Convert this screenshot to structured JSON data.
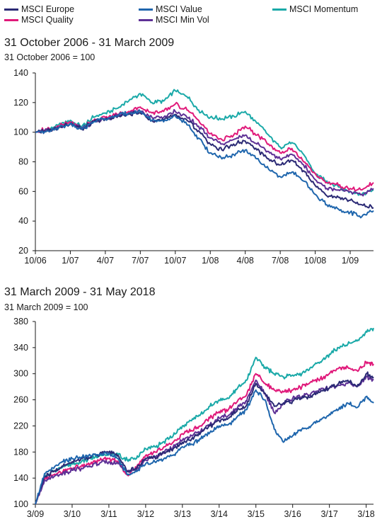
{
  "legend": [
    {
      "name": "MSCI Europe",
      "color": "#2b2a75"
    },
    {
      "name": "MSCI Quality",
      "color": "#e0197a"
    },
    {
      "name": "MSCI Value",
      "color": "#1f66ad"
    },
    {
      "name": "MSCI Min Vol",
      "color": "#5e3196"
    },
    {
      "name": "MSCI Momentum",
      "color": "#1aa9a8"
    }
  ],
  "chart_data": [
    {
      "type": "line",
      "title": "31 October 2006 - 31 March 2009",
      "subtitle": "31 October 2006 = 100",
      "ylim": [
        20,
        140
      ],
      "yticks": [
        20,
        40,
        60,
        80,
        100,
        120,
        140
      ],
      "xlim": [
        0,
        29
      ],
      "xticks": [
        {
          "x": 0,
          "label": "10/06"
        },
        {
          "x": 3,
          "label": "1/07"
        },
        {
          "x": 6,
          "label": "4/07"
        },
        {
          "x": 9,
          "label": "7/07"
        },
        {
          "x": 12,
          "label": "10/07"
        },
        {
          "x": 15,
          "label": "1/08"
        },
        {
          "x": 18,
          "label": "4/08"
        },
        {
          "x": 21,
          "label": "7/08"
        },
        {
          "x": 24,
          "label": "10/08"
        },
        {
          "x": 27,
          "label": "1/09"
        }
      ],
      "x": [
        0,
        1,
        2,
        3,
        4,
        5,
        6,
        7,
        8,
        9,
        10,
        11,
        12,
        13,
        14,
        15,
        16,
        17,
        18,
        19,
        20,
        21,
        22,
        23,
        24,
        25,
        26,
        27,
        28,
        29
      ],
      "series": [
        {
          "name": "MSCI Momentum",
          "color": "#1aa9a8",
          "values": [
            100,
            102,
            105,
            108,
            104,
            110,
            113,
            116,
            121,
            126,
            120,
            121,
            128,
            124,
            115,
            110,
            109,
            111,
            114,
            106,
            98,
            90,
            93,
            85,
            72,
            67,
            63,
            60,
            58,
            61
          ]
        },
        {
          "name": "MSCI Quality",
          "color": "#e0197a",
          "values": [
            100,
            102,
            104,
            107,
            103,
            108,
            110,
            112,
            114,
            117,
            113,
            114,
            119,
            115,
            108,
            99,
            95,
            98,
            104,
            98,
            92,
            86,
            89,
            80,
            72,
            66,
            64,
            62,
            61,
            66
          ]
        },
        {
          "name": "MSCI Min Vol",
          "color": "#5e3196",
          "values": [
            100,
            101,
            103,
            106,
            103,
            107,
            109,
            111,
            113,
            114,
            110,
            110,
            114,
            110,
            104,
            96,
            92,
            95,
            98,
            92,
            87,
            82,
            85,
            78,
            68,
            62,
            61,
            60,
            58,
            62
          ]
        },
        {
          "name": "MSCI Europe",
          "color": "#2b2a75",
          "values": [
            100,
            101,
            103,
            106,
            102,
            107,
            109,
            110,
            112,
            113,
            108,
            108,
            112,
            108,
            101,
            92,
            88,
            92,
            94,
            88,
            82,
            78,
            81,
            74,
            64,
            57,
            56,
            54,
            51,
            49
          ]
        },
        {
          "name": "MSCI Value",
          "color": "#1f66ad",
          "values": [
            100,
            101,
            103,
            106,
            102,
            107,
            109,
            111,
            113,
            114,
            108,
            107,
            111,
            105,
            96,
            86,
            82,
            85,
            88,
            82,
            75,
            70,
            73,
            67,
            58,
            51,
            48,
            46,
            43,
            47
          ]
        }
      ]
    },
    {
      "type": "line",
      "title": "31 March 2009 - 31 May 2018",
      "subtitle": "31 March 2009 = 100",
      "ylim": [
        100,
        380
      ],
      "yticks": [
        100,
        140,
        180,
        220,
        260,
        300,
        340,
        380
      ],
      "xlim": [
        0,
        9.2
      ],
      "xticks": [
        {
          "x": 0,
          "label": "3/09"
        },
        {
          "x": 1,
          "label": "3/10"
        },
        {
          "x": 2,
          "label": "3/11"
        },
        {
          "x": 3,
          "label": "3/12"
        },
        {
          "x": 4,
          "label": "3/13"
        },
        {
          "x": 5,
          "label": "3/14"
        },
        {
          "x": 6,
          "label": "3/15"
        },
        {
          "x": 7,
          "label": "3/16"
        },
        {
          "x": 8,
          "label": "3/17"
        },
        {
          "x": 9,
          "label": "3/18"
        }
      ],
      "x": [
        0,
        0.25,
        0.5,
        0.75,
        1,
        1.25,
        1.5,
        1.75,
        2,
        2.25,
        2.5,
        2.75,
        3,
        3.25,
        3.5,
        3.75,
        4,
        4.25,
        4.5,
        4.75,
        5,
        5.25,
        5.5,
        5.75,
        6,
        6.25,
        6.5,
        6.75,
        7,
        7.25,
        7.5,
        7.75,
        8,
        8.25,
        8.5,
        8.75,
        9,
        9.2
      ],
      "series": [
        {
          "name": "MSCI Momentum",
          "color": "#1aa9a8",
          "values": [
            100,
            140,
            150,
            158,
            162,
            165,
            170,
            174,
            178,
            175,
            168,
            170,
            185,
            188,
            196,
            205,
            220,
            228,
            238,
            250,
            260,
            262,
            278,
            290,
            325,
            310,
            300,
            295,
            298,
            300,
            310,
            318,
            330,
            340,
            345,
            350,
            365,
            370
          ]
        },
        {
          "name": "MSCI Quality",
          "color": "#e0197a",
          "values": [
            100,
            138,
            145,
            150,
            155,
            158,
            162,
            167,
            170,
            165,
            145,
            155,
            175,
            180,
            188,
            195,
            208,
            213,
            220,
            232,
            242,
            245,
            258,
            268,
            300,
            285,
            275,
            272,
            275,
            280,
            288,
            292,
            300,
            308,
            310,
            305,
            318,
            315
          ]
        },
        {
          "name": "MSCI Min Vol",
          "color": "#5e3196",
          "values": [
            100,
            137,
            142,
            148,
            152,
            155,
            158,
            163,
            165,
            162,
            150,
            152,
            168,
            172,
            180,
            188,
            198,
            205,
            212,
            222,
            232,
            236,
            248,
            258,
            290,
            270,
            240,
            255,
            262,
            265,
            270,
            275,
            278,
            282,
            285,
            280,
            295,
            290
          ]
        },
        {
          "name": "MSCI Europe",
          "color": "#2b2a75",
          "values": [
            100,
            142,
            150,
            158,
            165,
            170,
            172,
            177,
            180,
            175,
            150,
            155,
            170,
            172,
            180,
            185,
            195,
            200,
            210,
            220,
            228,
            232,
            245,
            252,
            285,
            270,
            250,
            255,
            258,
            262,
            266,
            272,
            278,
            285,
            290,
            280,
            300,
            295
          ]
        },
        {
          "name": "MSCI Value",
          "color": "#1f66ad",
          "values": [
            100,
            147,
            155,
            165,
            170,
            172,
            174,
            176,
            178,
            170,
            145,
            150,
            162,
            165,
            170,
            175,
            188,
            192,
            200,
            210,
            220,
            222,
            235,
            245,
            275,
            260,
            215,
            195,
            205,
            215,
            220,
            230,
            238,
            245,
            255,
            248,
            265,
            255
          ]
        }
      ]
    }
  ]
}
